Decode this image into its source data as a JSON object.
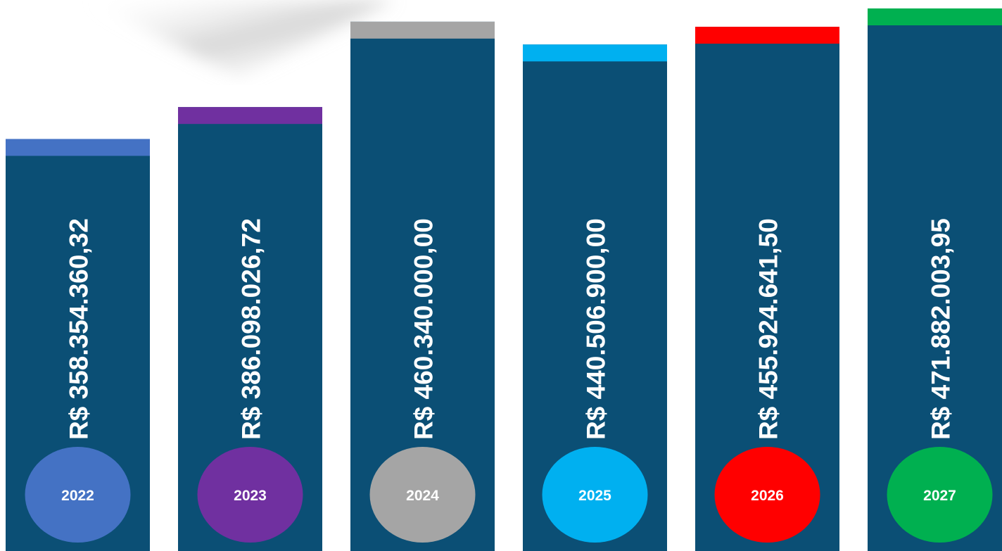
{
  "chart_data": {
    "type": "bar",
    "categories": [
      "2022",
      "2023",
      "2024",
      "2025",
      "2026",
      "2027"
    ],
    "values": [
      358354360.32,
      386098026.72,
      460340000.0,
      440506900.0,
      455924641.5,
      471882003.95
    ],
    "value_labels": [
      "R$ 358.354.360,32",
      "R$ 386.098.026,72",
      "R$ 460.340.000,00",
      "R$ 440.506.900,00",
      "R$ 455.924.641,50",
      "R$ 471.882.003,95"
    ],
    "color": "#0b4f75",
    "colors": [
      "#4472c4",
      "#7030a0",
      "#a5a5a5",
      "#00b0f0",
      "#ff0000",
      "#00b050"
    ]
  }
}
